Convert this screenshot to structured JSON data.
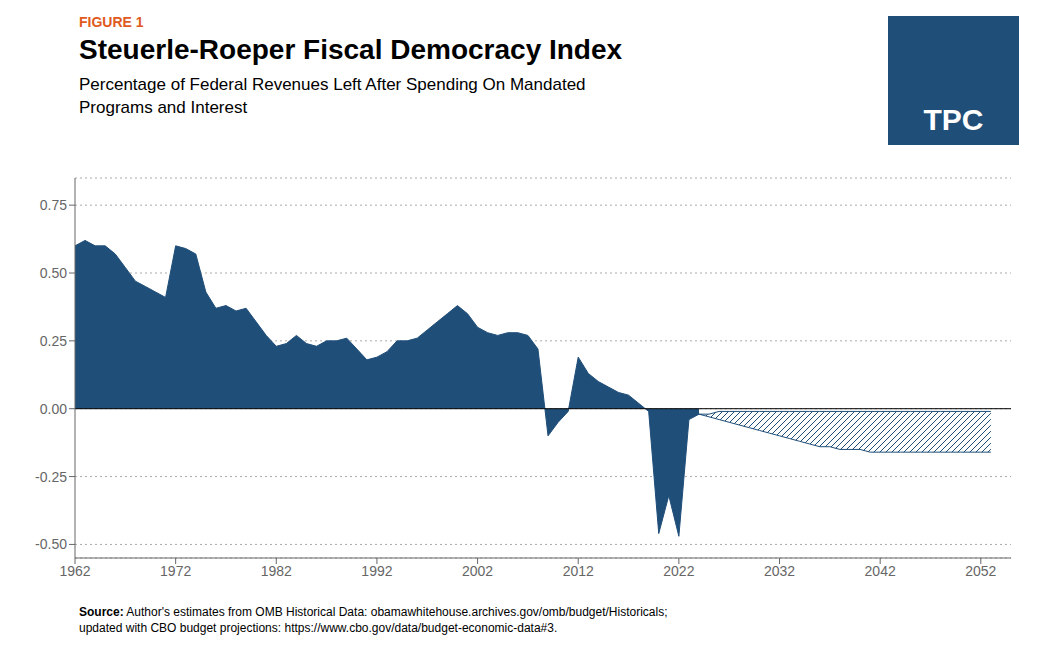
{
  "chart_data": {
    "type": "area",
    "title": "Steuerle-Roeper Fiscal Democracy Index",
    "subtitle": "Percentage of Federal Revenues Left After Spending On Mandated\nPrograms and Interest",
    "annotations": [
      {
        "text": "FIGURE 1",
        "color": "#E05A1E"
      },
      {
        "text": "TPC",
        "color": "#FFFFFF"
      }
    ],
    "source": {
      "label": "Source:",
      "text": " Author's estimates from OMB Historical Data: obamawhitehouse.archives.gov/omb/budget/Historicals;\nupdated with CBO budget projections: https://www.cbo.gov/data/budget-economic-data#3."
    },
    "xlim": [
      1962,
      2055
    ],
    "ylim": [
      -0.55,
      0.85
    ],
    "xticks": [
      1962,
      1972,
      1982,
      1992,
      2002,
      2012,
      2022,
      2032,
      2042,
      2052
    ],
    "yticks": [
      {
        "value": -0.5,
        "label": "-0.50"
      },
      -0.25,
      {
        "value": 0,
        "label": "0.00"
      },
      0.25,
      {
        "value": 0.5,
        "label": "0.50"
      },
      0.75
    ],
    "grid": true,
    "color": "#1F4E79",
    "series": [
      {
        "type": "area",
        "color": "#1F4E79",
        "x": [
          1962,
          1963,
          1964,
          1965,
          1966,
          1967,
          1968,
          1969,
          1970,
          1971,
          1972,
          1973,
          1974,
          1975,
          1976,
          1977,
          1978,
          1979,
          1980,
          1981,
          1982,
          1983,
          1984,
          1985,
          1986,
          1987,
          1988,
          1989,
          1990,
          1991,
          1992,
          1993,
          1994,
          1995,
          1996,
          1997,
          1998,
          1999,
          2000,
          2001,
          2002,
          2003,
          2004,
          2005,
          2006,
          2007,
          2008,
          2009,
          2010,
          2011,
          2012,
          2013,
          2014,
          2015,
          2016,
          2017,
          2018,
          2019,
          2020,
          2021,
          2022,
          2023,
          2024
        ],
        "values": [
          0.6,
          0.62,
          0.6,
          0.6,
          0.57,
          0.52,
          0.47,
          0.45,
          0.43,
          0.41,
          0.6,
          0.59,
          0.57,
          0.43,
          0.37,
          0.38,
          0.36,
          0.37,
          0.32,
          0.27,
          0.23,
          0.24,
          0.27,
          0.24,
          0.23,
          0.25,
          0.25,
          0.26,
          0.22,
          0.18,
          0.19,
          0.21,
          0.25,
          0.25,
          0.26,
          0.29,
          0.32,
          0.35,
          0.38,
          0.35,
          0.3,
          0.28,
          0.27,
          0.28,
          0.28,
          0.27,
          0.22,
          -0.1,
          -0.05,
          -0.01,
          0.19,
          0.13,
          0.1,
          0.08,
          0.06,
          0.05,
          0.02,
          -0.01,
          -0.46,
          -0.32,
          -0.47,
          -0.04,
          -0.02
        ]
      },
      {
        "type": "band",
        "color": "#1F4E79",
        "x": [
          2024,
          2025,
          2026,
          2027,
          2028,
          2029,
          2030,
          2031,
          2032,
          2033,
          2034,
          2035,
          2036,
          2037,
          2038,
          2039,
          2040,
          2041,
          2042,
          2043,
          2044,
          2045,
          2046,
          2047,
          2048,
          2049,
          2050,
          2051,
          2052,
          2053
        ],
        "upper": [
          -0.02,
          -0.02,
          -0.01,
          -0.01,
          -0.01,
          -0.01,
          -0.01,
          -0.01,
          -0.01,
          -0.01,
          -0.01,
          -0.01,
          -0.01,
          -0.01,
          -0.01,
          -0.01,
          -0.01,
          -0.01,
          -0.01,
          -0.01,
          -0.01,
          -0.01,
          -0.01,
          -0.01,
          -0.01,
          -0.01,
          -0.01,
          -0.01,
          -0.01,
          -0.01
        ],
        "lower": [
          -0.02,
          -0.03,
          -0.04,
          -0.05,
          -0.06,
          -0.07,
          -0.08,
          -0.09,
          -0.1,
          -0.11,
          -0.12,
          -0.13,
          -0.14,
          -0.14,
          -0.15,
          -0.15,
          -0.15,
          -0.16,
          -0.16,
          -0.16,
          -0.16,
          -0.16,
          -0.16,
          -0.16,
          -0.16,
          -0.16,
          -0.16,
          -0.16,
          -0.16,
          -0.16
        ]
      }
    ]
  }
}
